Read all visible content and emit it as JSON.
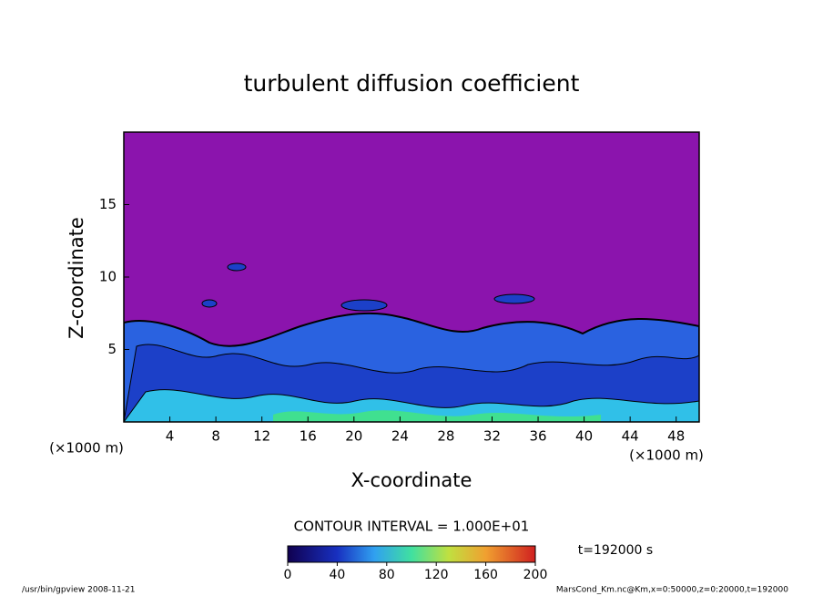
{
  "chart_data": {
    "type": "contour",
    "title": "turbulent diffusion coefficient",
    "x_label": "X-coordinate",
    "y_label": "Z-coordinate",
    "x_unit": "(×1000 m)",
    "xlim": [
      0,
      50
    ],
    "xticks": [
      4,
      8,
      12,
      16,
      20,
      24,
      28,
      32,
      36,
      40,
      44,
      48
    ],
    "ylim": [
      0,
      20
    ],
    "yticks": [
      5,
      10,
      15
    ],
    "contour_interval": "CONTOUR INTERVAL = 1.000E+01",
    "time_label": "t=192000 s",
    "colorbar": {
      "lim": [
        0,
        200
      ],
      "ticks": [
        0,
        40,
        80,
        120,
        160,
        200
      ]
    },
    "footer_left": "/usr/bin/gpview  2008-11-21",
    "footer_right": "MarsCond_Km.nc@Km,x=0:50000,z=0:20000,t=192000"
  }
}
